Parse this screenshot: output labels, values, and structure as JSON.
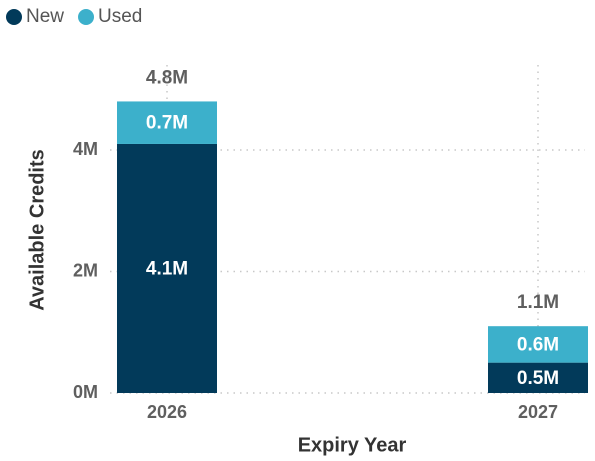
{
  "chart_data": {
    "type": "stacked_bar",
    "xlabel": "Expiry Year",
    "ylabel": "Available Credits",
    "categories": [
      "2026",
      "2027"
    ],
    "series": [
      {
        "name": "New",
        "color": "#023a5a",
        "values": [
          4100000,
          500000
        ],
        "value_labels": [
          "4.1M",
          "0.5M"
        ]
      },
      {
        "name": "Used",
        "color": "#3cb0cb",
        "values": [
          700000,
          600000
        ],
        "value_labels": [
          "0.7M",
          "0.6M"
        ]
      }
    ],
    "totals": {
      "values": [
        4800000,
        1100000
      ],
      "value_labels": [
        "4.8M",
        "1.1M"
      ]
    },
    "ylim": [
      0,
      5400000
    ],
    "yticks": [
      {
        "value": 0,
        "label": "0M"
      },
      {
        "value": 2000000,
        "label": "2M"
      },
      {
        "value": 4000000,
        "label": "4M"
      }
    ],
    "grid": true,
    "legend": "top-left"
  }
}
